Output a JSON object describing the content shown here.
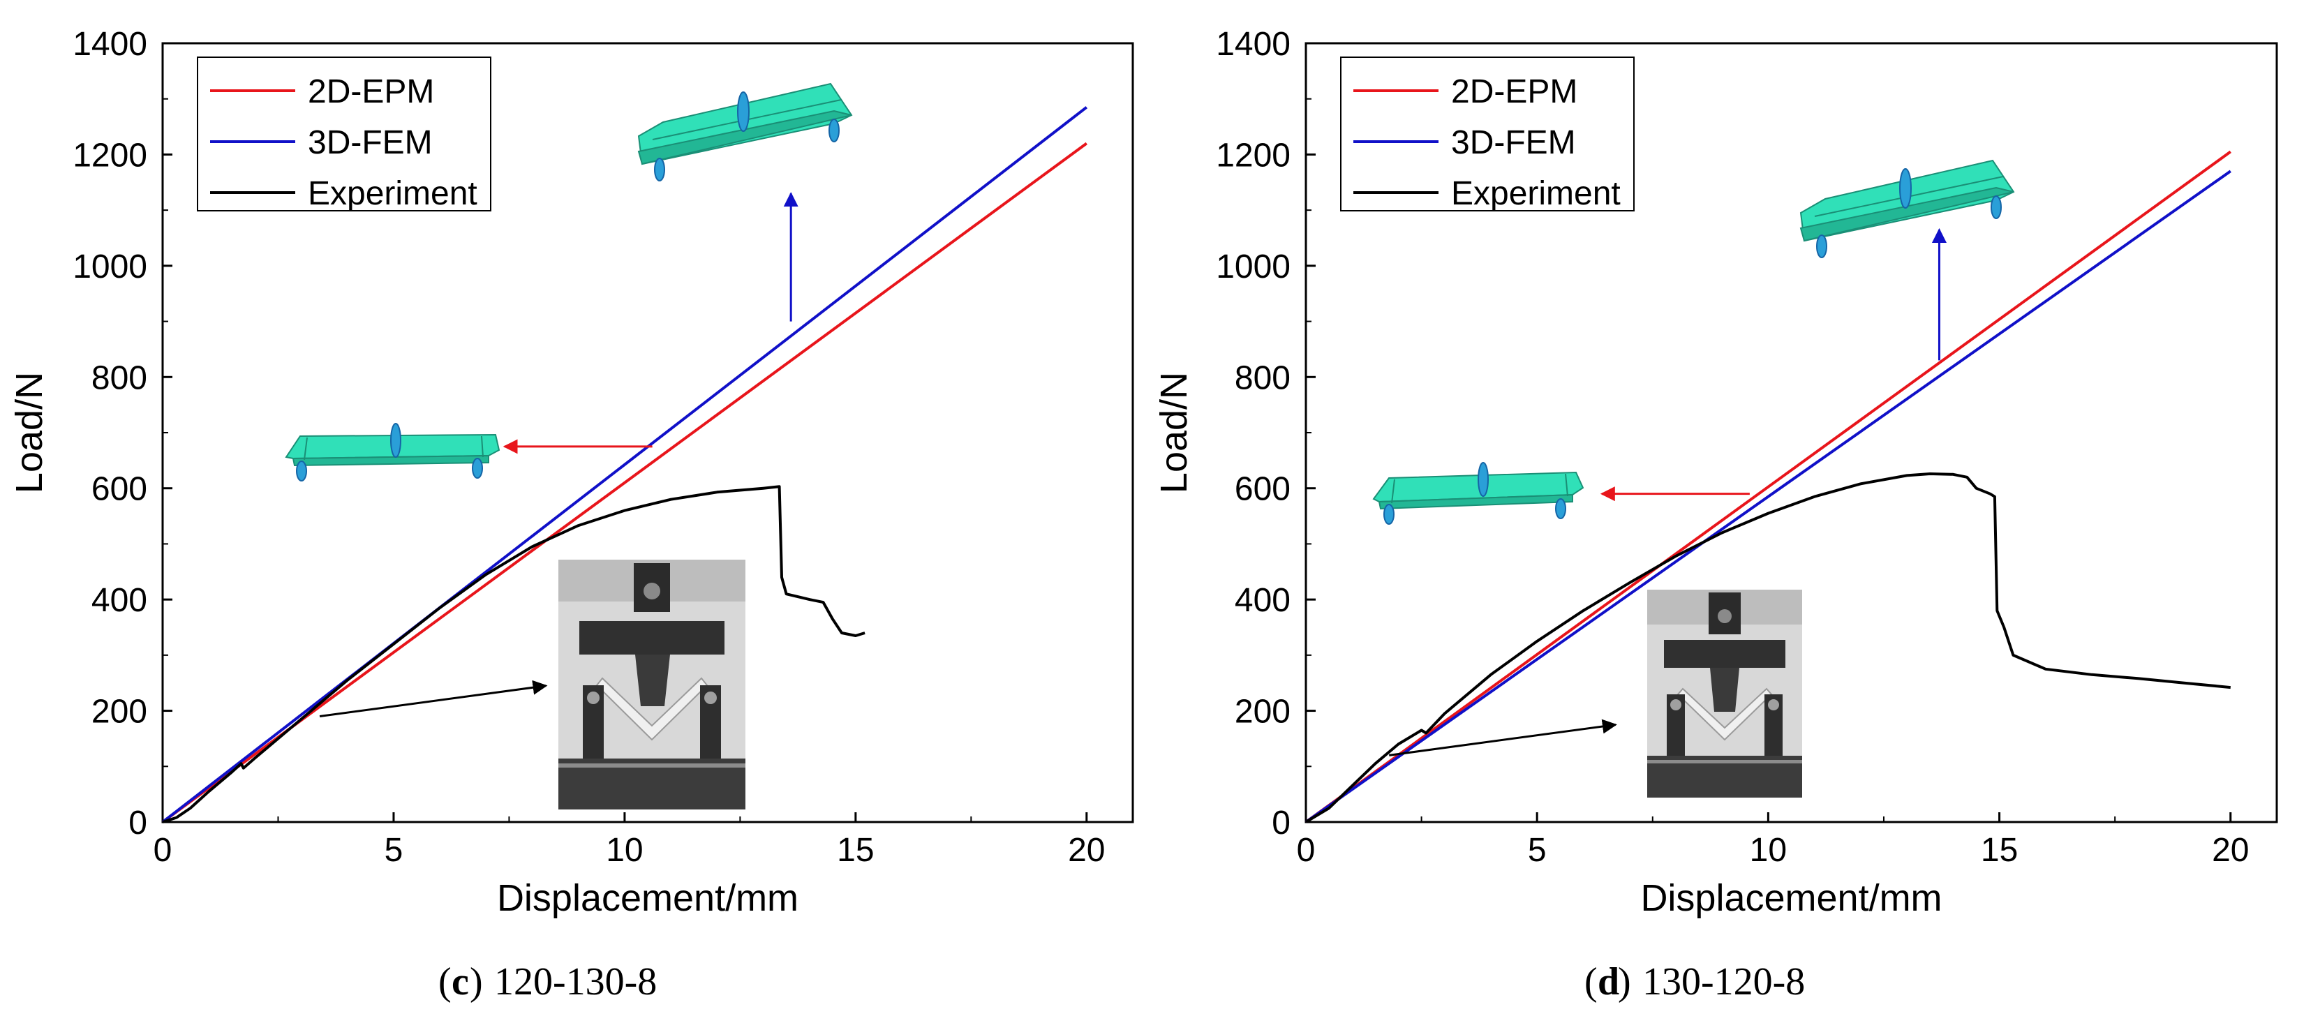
{
  "figure": {
    "panels": [
      {
        "id": "c",
        "caption": {
          "letter": "c",
          "text": "120-130-8"
        },
        "chart_data": {
          "type": "line",
          "title": "",
          "xlabel": "Displacement/mm",
          "ylabel": "Load/N",
          "xlim": [
            0,
            21
          ],
          "ylim": [
            0,
            1400
          ],
          "xticks": [
            0,
            5,
            10,
            15,
            20
          ],
          "yticks": [
            0,
            200,
            400,
            600,
            800,
            1000,
            1200,
            1400
          ],
          "legend": "top-left",
          "series": [
            {
              "name": "2D-EPM",
              "color": "#e8151b",
              "points": [
                [
                  0,
                  0
                ],
                [
                  20,
                  1220
                ]
              ]
            },
            {
              "name": "3D-FEM",
              "color": "#1010c8",
              "points": [
                [
                  0,
                  0
                ],
                [
                  20,
                  1285
                ]
              ]
            },
            {
              "name": "Experiment",
              "color": "#000000",
              "points": [
                [
                  0,
                  0
                ],
                [
                  0.3,
                  8
                ],
                [
                  0.6,
                  25
                ],
                [
                  1.0,
                  55
                ],
                [
                  1.5,
                  90
                ],
                [
                  1.7,
                  105
                ],
                [
                  1.75,
                  97
                ],
                [
                  2.0,
                  115
                ],
                [
                  3.0,
                  185
                ],
                [
                  4.0,
                  255
                ],
                [
                  5.0,
                  320
                ],
                [
                  6.0,
                  385
                ],
                [
                  7.0,
                  445
                ],
                [
                  8.0,
                  495
                ],
                [
                  9.0,
                  533
                ],
                [
                  10.0,
                  560
                ],
                [
                  11.0,
                  580
                ],
                [
                  12.0,
                  593
                ],
                [
                  13.0,
                  600
                ],
                [
                  13.35,
                  603
                ],
                [
                  13.4,
                  440
                ],
                [
                  13.5,
                  410
                ],
                [
                  14.0,
                  400
                ],
                [
                  14.3,
                  395
                ],
                [
                  14.5,
                  365
                ],
                [
                  14.7,
                  340
                ],
                [
                  15.0,
                  335
                ],
                [
                  15.2,
                  340
                ]
              ]
            }
          ],
          "annotations": [
            {
              "kind": "arrow",
              "color": "#e8151b",
              "from": [
                10.6,
                675
              ],
              "to": [
                7.4,
                675
              ]
            },
            {
              "kind": "arrow",
              "color": "#1010c8",
              "from": [
                13.6,
                900
              ],
              "to": [
                13.6,
                1130
              ]
            },
            {
              "kind": "arrow",
              "color": "#000000",
              "from": [
                3.4,
                190
              ],
              "to": [
                8.3,
                245
              ]
            }
          ]
        }
      },
      {
        "id": "d",
        "caption": {
          "letter": "d",
          "text": "130-120-8"
        },
        "chart_data": {
          "type": "line",
          "title": "",
          "xlabel": "Displacement/mm",
          "ylabel": "Load/N",
          "xlim": [
            0,
            21
          ],
          "ylim": [
            0,
            1400
          ],
          "xticks": [
            0,
            5,
            10,
            15,
            20
          ],
          "yticks": [
            0,
            200,
            400,
            600,
            800,
            1000,
            1200,
            1400
          ],
          "legend": "top-left",
          "series": [
            {
              "name": "2D-EPM",
              "color": "#e8151b",
              "points": [
                [
                  0,
                  0
                ],
                [
                  20,
                  1205
                ]
              ]
            },
            {
              "name": "3D-FEM",
              "color": "#1010c8",
              "points": [
                [
                  0,
                  0
                ],
                [
                  20,
                  1170
                ]
              ]
            },
            {
              "name": "Experiment",
              "color": "#000000",
              "points": [
                [
                  0,
                  0
                ],
                [
                  0.5,
                  25
                ],
                [
                  1.0,
                  65
                ],
                [
                  1.5,
                  105
                ],
                [
                  2.0,
                  140
                ],
                [
                  2.5,
                  165
                ],
                [
                  2.6,
                  160
                ],
                [
                  3.0,
                  195
                ],
                [
                  4.0,
                  265
                ],
                [
                  5.0,
                  325
                ],
                [
                  6.0,
                  380
                ],
                [
                  7.0,
                  430
                ],
                [
                  8.0,
                  478
                ],
                [
                  9.0,
                  520
                ],
                [
                  10.0,
                  555
                ],
                [
                  11.0,
                  585
                ],
                [
                  12.0,
                  608
                ],
                [
                  13.0,
                  623
                ],
                [
                  13.5,
                  626
                ],
                [
                  14.0,
                  625
                ],
                [
                  14.3,
                  620
                ],
                [
                  14.5,
                  600
                ],
                [
                  14.8,
                  590
                ],
                [
                  14.9,
                  585
                ],
                [
                  14.95,
                  380
                ],
                [
                  15.1,
                  350
                ],
                [
                  15.3,
                  300
                ],
                [
                  16.0,
                  275
                ],
                [
                  17.0,
                  265
                ],
                [
                  18.0,
                  258
                ],
                [
                  19.0,
                  250
                ],
                [
                  20.0,
                  242
                ]
              ]
            }
          ],
          "annotations": [
            {
              "kind": "arrow",
              "color": "#e8151b",
              "from": [
                9.6,
                590
              ],
              "to": [
                6.4,
                590
              ]
            },
            {
              "kind": "arrow",
              "color": "#1010c8",
              "from": [
                13.7,
                830
              ],
              "to": [
                13.7,
                1065
              ]
            },
            {
              "kind": "arrow",
              "color": "#000000",
              "from": [
                1.8,
                120
              ],
              "to": [
                6.7,
                175
              ]
            }
          ]
        }
      }
    ]
  }
}
